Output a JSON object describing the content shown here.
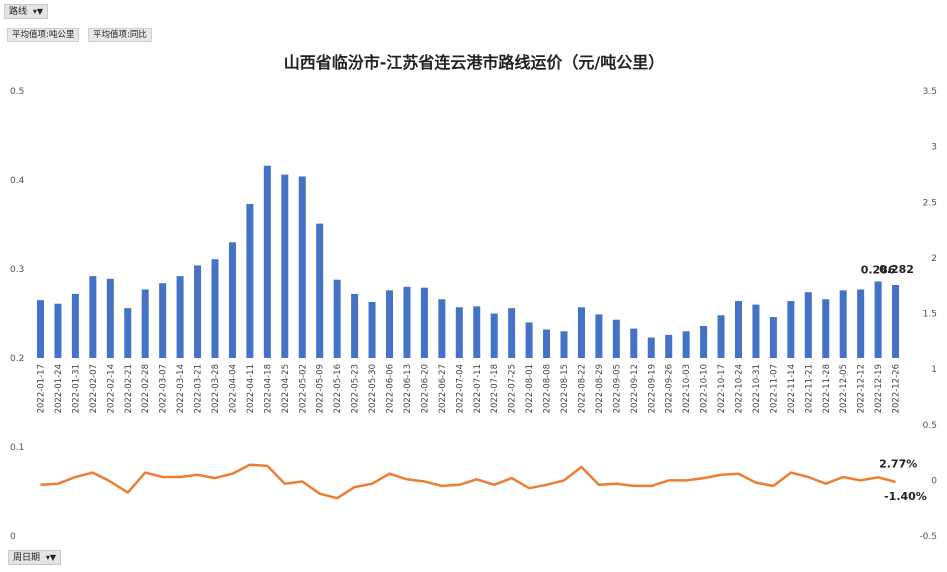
{
  "filters": {
    "route_label": "路线",
    "week_label": "周日期",
    "funnel_icon": "filter-dropdown-icon"
  },
  "value_fields": [
    "平均值项:吨公里",
    "平均值项:同比"
  ],
  "chart_data": {
    "type": "bar",
    "title": "山西省临汾市-江苏省连云港市路线运价（元/吨公里）",
    "categories": [
      "2022-01-17",
      "2022-01-24",
      "2022-01-31",
      "2022-02-07",
      "2022-02-14",
      "2022-02-21",
      "2022-02-28",
      "2022-03-07",
      "2022-03-14",
      "2022-03-21",
      "2022-03-28",
      "2022-04-04",
      "2022-04-11",
      "2022-04-18",
      "2022-04-25",
      "2022-05-02",
      "2022-05-09",
      "2022-05-16",
      "2022-05-23",
      "2022-05-30",
      "2022-06-06",
      "2022-06-13",
      "2022-06-20",
      "2022-06-27",
      "2022-07-04",
      "2022-07-11",
      "2022-07-18",
      "2022-07-25",
      "2022-08-01",
      "2022-08-08",
      "2022-08-15",
      "2022-08-22",
      "2022-08-29",
      "2022-09-05",
      "2022-09-12",
      "2022-09-19",
      "2022-09-26",
      "2022-10-03",
      "2022-10-10",
      "2022-10-17",
      "2022-10-24",
      "2022-10-31",
      "2022-11-07",
      "2022-11-14",
      "2022-11-21",
      "2022-11-28",
      "2022-12-05",
      "2022-12-12",
      "2022-12-19",
      "2022-12-26"
    ],
    "series": [
      {
        "type": "bar",
        "axis": "left",
        "color": "#4472c4",
        "values": [
          0.265,
          0.261,
          0.272,
          0.292,
          0.289,
          0.256,
          0.277,
          0.284,
          0.292,
          0.304,
          0.311,
          0.33,
          0.373,
          0.416,
          0.406,
          0.404,
          0.351,
          0.288,
          0.272,
          0.263,
          0.276,
          0.28,
          0.279,
          0.266,
          0.257,
          0.258,
          0.25,
          0.256,
          0.24,
          0.232,
          0.23,
          0.257,
          0.249,
          0.243,
          0.233,
          0.223,
          0.226,
          0.23,
          0.236,
          0.248,
          0.264,
          0.26,
          0.246,
          0.264,
          0.274,
          0.266,
          0.276,
          0.277,
          0.286,
          0.282
        ]
      },
      {
        "type": "line",
        "axis": "right",
        "color": "#ed7d31",
        "values": [
          -0.04,
          -0.03,
          0.03,
          0.07,
          -0.01,
          -0.11,
          0.07,
          0.03,
          0.03,
          0.05,
          0.02,
          0.06,
          0.14,
          0.13,
          -0.03,
          -0.01,
          -0.12,
          -0.16,
          -0.06,
          -0.03,
          0.06,
          0.01,
          -0.01,
          -0.05,
          -0.04,
          0.01,
          -0.04,
          0.02,
          -0.07,
          -0.04,
          0.0,
          0.12,
          -0.04,
          -0.03,
          -0.05,
          -0.05,
          0.0,
          0.0,
          0.02,
          0.05,
          0.06,
          -0.02,
          -0.05,
          0.07,
          0.03,
          -0.03,
          0.03,
          0.0,
          0.0277,
          -0.014
        ]
      }
    ],
    "data_labels": [
      "0.286",
      "0.282",
      "2.77%",
      "-1.40%"
    ],
    "left_axis": {
      "min": 0,
      "max": 0.5,
      "ticks": [
        "0",
        "0.1",
        "0.2",
        "0.3",
        "0.4",
        "0.5"
      ]
    },
    "right_axis": {
      "min": -0.5,
      "max": 3.5,
      "ticks": [
        "-0.5",
        "0",
        "0.5",
        "1",
        "1.5",
        "2",
        "2.5",
        "3",
        "3.5"
      ]
    },
    "bar_axis_min": 0.2
  }
}
